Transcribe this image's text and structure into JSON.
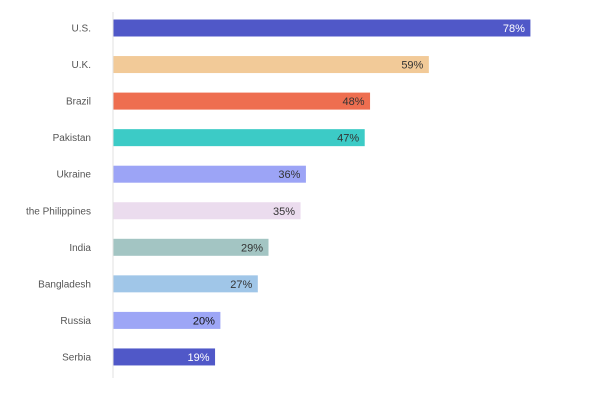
{
  "chart_data": {
    "type": "bar",
    "orientation": "horizontal",
    "categories": [
      "U.S.",
      "U.K.",
      "Brazil",
      "Pakistan",
      "Ukraine",
      "the Philippines",
      "India",
      "Bangladesh",
      "Russia",
      "Serbia"
    ],
    "values": [
      78,
      59,
      48,
      47,
      36,
      35,
      29,
      27,
      20,
      19
    ],
    "value_labels": [
      "78%",
      "59%",
      "48%",
      "47%",
      "36%",
      "35%",
      "29%",
      "27%",
      "20%",
      "19%"
    ],
    "bar_colors": [
      "#5058c8",
      "#f2ca98",
      "#ee6e50",
      "#3ccbc6",
      "#9ca4f6",
      "#ebdcee",
      "#a3c5c3",
      "#a0c6e8",
      "#9da6f6",
      "#5058c8"
    ],
    "value_label_colors": [
      "#ffffff",
      "#333333",
      "#333333",
      "#333333",
      "#333333",
      "#333333",
      "#333333",
      "#333333",
      "#111111",
      "#ffffff"
    ],
    "title": "",
    "xlabel": "",
    "ylabel": "",
    "xlim": [
      0,
      100
    ],
    "grid": false,
    "legend": "none"
  }
}
